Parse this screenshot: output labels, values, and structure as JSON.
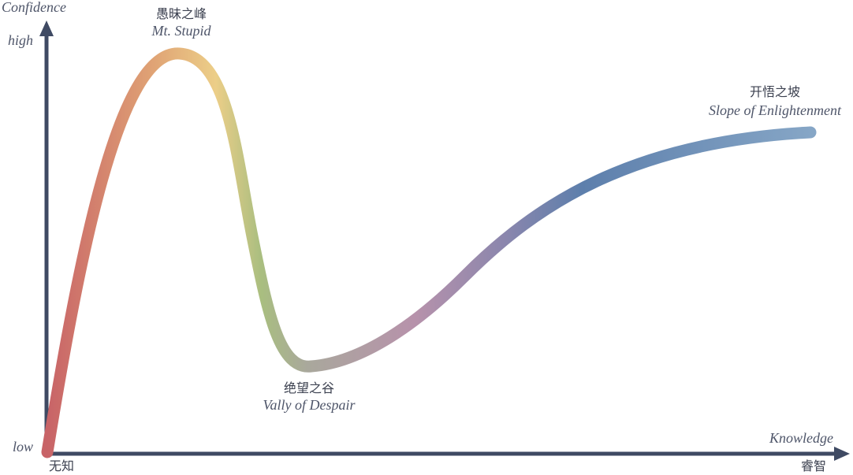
{
  "axes": {
    "y_title": "Confidence",
    "y_high": "high",
    "y_low": "low",
    "x_title": "Knowledge",
    "x_start": "无知",
    "x_end": "睿智"
  },
  "annotations": {
    "peak": {
      "zh": "愚昧之峰",
      "en": "Mt. Stupid"
    },
    "valley": {
      "zh": "绝望之谷",
      "en": "Vally of Despair"
    },
    "slope": {
      "zh": "开悟之坡",
      "en": "Slope of Enlightenment"
    }
  },
  "colors": {
    "axis": "#3f4a63",
    "curve_gradient": [
      "#c86367",
      "#e3a978",
      "#e8cd86",
      "#a8bd7e",
      "#b290ab",
      "#5f83b3",
      "#7fa1c2"
    ]
  }
}
